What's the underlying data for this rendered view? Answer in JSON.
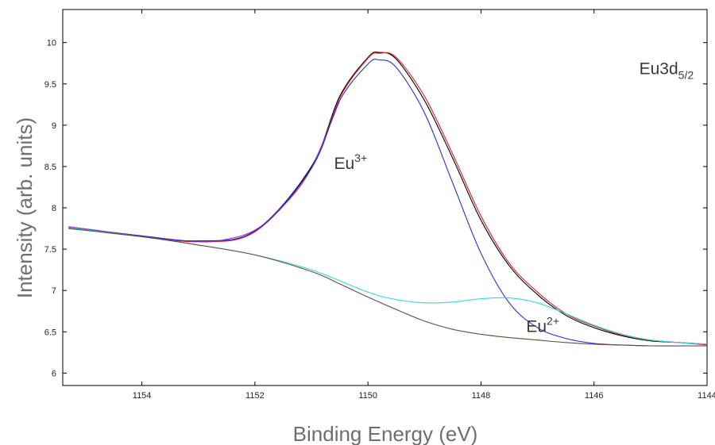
{
  "chart_data": {
    "type": "line",
    "title": "",
    "xlabel": "Binding Energy (eV)",
    "ylabel": "Intensity (arb. units)",
    "x_reversed": true,
    "xlim": [
      1155.4,
      1144
    ],
    "ylim": [
      5.85,
      10.4
    ],
    "x_ticks": [
      "1154",
      "1152",
      "1150",
      "1148",
      "1146",
      "1144"
    ],
    "x_tick_values": [
      1154,
      1152,
      1150,
      1148,
      1146,
      1144
    ],
    "y_ticks": [
      "6",
      "6.5",
      "7",
      "7.5",
      "8",
      "8.5",
      "9",
      "9.5",
      "10"
    ],
    "y_tick_values": [
      6,
      6.5,
      7,
      7.5,
      8,
      8.5,
      9,
      9.5,
      10
    ],
    "grid": false,
    "annotations": [
      {
        "base": "Eu",
        "sup": "3+",
        "x": 1150.6,
        "y": 8.47
      },
      {
        "base": "Eu",
        "sup": "2+",
        "x": 1147.2,
        "y": 6.5
      },
      {
        "base": "Eu3d",
        "sub": "5/2",
        "x": 1145.2,
        "y": 9.62
      }
    ],
    "series": [
      {
        "color": "#000000",
        "x": [
          1155.3,
          1154,
          1153,
          1152,
          1151,
          1150.5,
          1150,
          1149.8,
          1149.5,
          1149,
          1148.5,
          1148,
          1147.5,
          1147,
          1146.5,
          1146,
          1145.5,
          1145,
          1144.5,
          1144
        ],
        "values": [
          7.77,
          7.66,
          7.6,
          7.72,
          8.5,
          9.35,
          9.82,
          9.88,
          9.8,
          9.3,
          8.6,
          7.85,
          7.3,
          6.95,
          6.7,
          6.55,
          6.45,
          6.39,
          6.37,
          6.35
        ]
      },
      {
        "color": "#e02020",
        "x": [
          1155.3,
          1154,
          1153,
          1152,
          1151,
          1150.5,
          1150,
          1149.8,
          1149.5,
          1149,
          1148.5,
          1148,
          1147.5,
          1147,
          1146.5,
          1146,
          1145.5,
          1145,
          1144.5,
          1144
        ],
        "values": [
          7.76,
          7.66,
          7.59,
          7.71,
          8.48,
          9.33,
          9.81,
          9.87,
          9.82,
          9.35,
          8.65,
          7.9,
          7.33,
          6.98,
          6.72,
          6.57,
          6.46,
          6.4,
          6.37,
          6.34
        ]
      },
      {
        "color": "#9a30c0",
        "x": [
          1155.3,
          1154,
          1153,
          1152.5,
          1152,
          1151.5,
          1151,
          1150.5
        ],
        "values": [
          7.77,
          7.66,
          7.59,
          7.62,
          7.73,
          8.02,
          8.48,
          9.3
        ]
      },
      {
        "color": "#2b2bd6",
        "x": [
          1155.3,
          1154,
          1153,
          1152,
          1151,
          1150.5,
          1150,
          1149.8,
          1149.5,
          1149,
          1148.5,
          1148,
          1147.5,
          1147,
          1146.5,
          1146,
          1145.5,
          1145,
          1144
        ],
        "values": [
          7.76,
          7.66,
          7.6,
          7.72,
          8.48,
          9.3,
          9.74,
          9.79,
          9.7,
          9.15,
          8.3,
          7.45,
          6.85,
          6.55,
          6.42,
          6.36,
          6.34,
          6.33,
          6.33
        ]
      },
      {
        "color": "#30d8d8",
        "x": [
          1155.3,
          1154,
          1153,
          1152,
          1151,
          1150,
          1149.5,
          1149,
          1148.5,
          1148,
          1147.5,
          1147,
          1146.5,
          1146,
          1145.5,
          1145,
          1144.5,
          1144
        ],
        "values": [
          7.76,
          7.65,
          7.55,
          7.43,
          7.25,
          6.98,
          6.89,
          6.85,
          6.86,
          6.9,
          6.91,
          6.85,
          6.72,
          6.58,
          6.47,
          6.4,
          6.37,
          6.35
        ]
      },
      {
        "color": "#6a4a3a",
        "x": [
          1155.3,
          1154,
          1153,
          1152,
          1151,
          1150.5,
          1150,
          1149.5,
          1149,
          1148.5,
          1148,
          1147.5,
          1147,
          1146.5,
          1146,
          1145.5,
          1145,
          1144.5,
          1144
        ],
        "values": [
          7.75,
          7.65,
          7.55,
          7.43,
          7.23,
          7.08,
          6.92,
          6.77,
          6.63,
          6.53,
          6.47,
          6.43,
          6.4,
          6.37,
          6.35,
          6.34,
          6.33,
          6.33,
          6.33
        ]
      }
    ]
  }
}
